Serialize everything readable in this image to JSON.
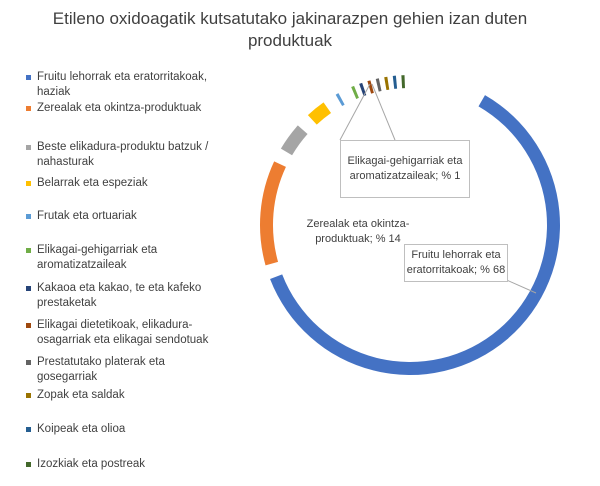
{
  "chart_data": {
    "type": "pie",
    "title_line1": "Etileno oxidoagatik kutsatutako jakinarazpen gehien izan duten",
    "title_line2": "produktuak",
    "series": [
      {
        "name": "Fruitu lehorrak eta eratorritakoak, haziak",
        "value": 68,
        "color": "#4472c4"
      },
      {
        "name": "Zerealak eta okintza-produktuak",
        "value": 14,
        "color": "#ed7d31"
      },
      {
        "name": "Beste elikadura-produktu batzuk / nahasturak",
        "value": 5,
        "color": "#a5a5a5"
      },
      {
        "name": "Belarrak eta espeziak",
        "value": 4,
        "color": "#ffc000"
      },
      {
        "name": "Frutak eta ortuariak",
        "value": 2,
        "color": "#5b9bd5"
      },
      {
        "name": "Elikagai-gehigarriak eta aromatizatzaileak",
        "value": 1,
        "color": "#70ad47"
      },
      {
        "name": "Kakaoa eta kakao, te eta kafeko prestaketak",
        "value": 1,
        "color": "#264478"
      },
      {
        "name": "Elikagai dietetikoak, elikadura-osagarriak eta elikagai sendotuak",
        "value": 1,
        "color": "#9e480e"
      },
      {
        "name": "Prestatutako platerak eta gosegarriak",
        "value": 1,
        "color": "#636363"
      },
      {
        "name": "Zopak eta saldak",
        "value": 1,
        "color": "#997300"
      },
      {
        "name": "Koipeak eta olioa",
        "value": 1,
        "color": "#255e91"
      },
      {
        "name": "Izozkiak eta postreak",
        "value": 1,
        "color": "#43682b"
      }
    ],
    "legend": {
      "placement": "left",
      "items": [
        "Fruitu lehorrak eta eratorritakoak,\nhaziak",
        "Zerealak eta okintza-produktuak",
        "Beste elikadura-produktu batzuk /\nnahasturak",
        "Belarrak eta espeziak",
        "Frutak eta ortuariak",
        "Elikagai-gehigarriak eta\naromatizatzaileak",
        "Kakaoa eta kakao, te eta kafeko\nprestaketak",
        "Elikagai dietetikoak, elikadura-\nosagarriak eta elikagai sendotuak",
        "Prestatutako platerak eta\ngosegarriak",
        "Zopak eta saldak",
        "Koipeak eta olioa",
        "Izozkiak eta postreak"
      ]
    },
    "data_labels": {
      "fruitu": "Fruitu lehorrak eta\neratorritakoak; % 68",
      "zerealak": "Zerealak eta okintza-\nproduktuak; % 14",
      "elikagai": "Elikagai-gehigarriak eta\naromatizatzaileak; % 1"
    }
  }
}
